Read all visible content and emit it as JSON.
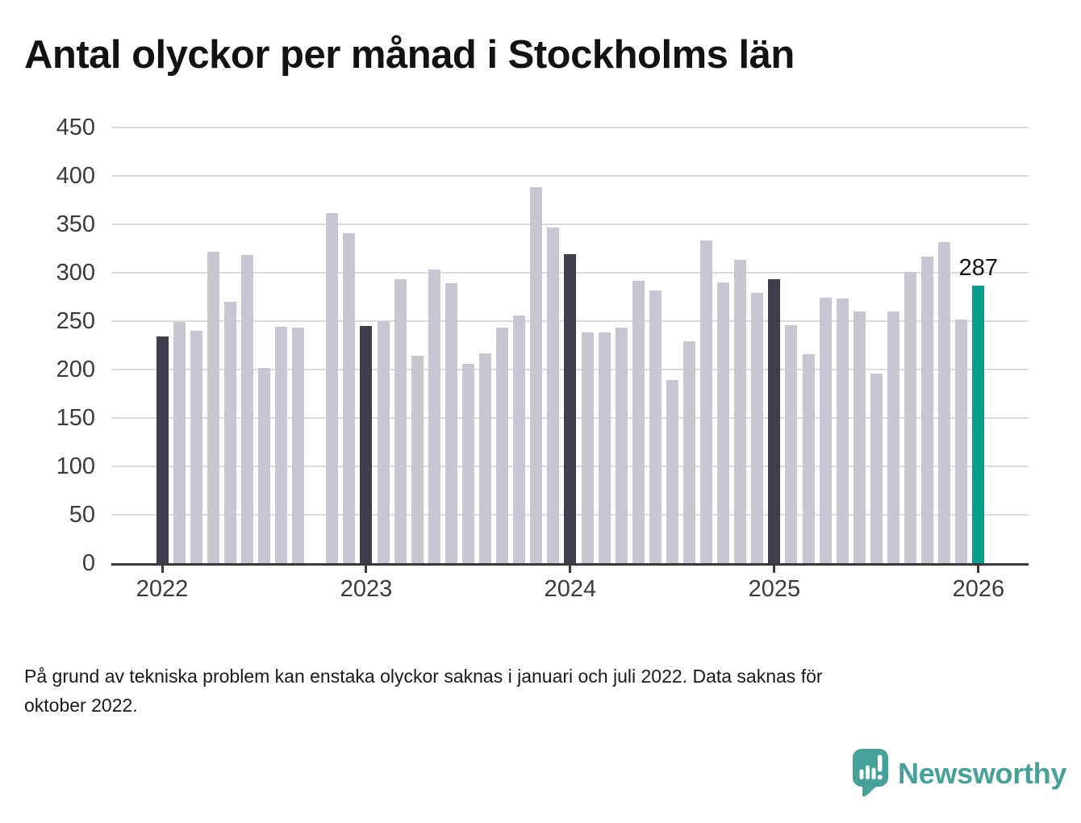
{
  "title": "Antal olyckor per månad i Stockholms län",
  "footnote": {
    "lines": [
      "På grund av tekniska problem kan enstaka olyckor saknas i januari och juli 2022. Data saknas för",
      "oktober 2022."
    ]
  },
  "branding": {
    "name": "Newsworthy",
    "icon": "newsworthy-speech-bubble-bar-chart-icon"
  },
  "colors": {
    "bar_default": "#c7c6d2",
    "bar_january": "#3e3e4d",
    "bar_latest": "#089e8e",
    "gridline": "#dcdcdc",
    "axis": "#3a3a3a",
    "tick_label": "#3b3b3b",
    "annotation_text": "#141414",
    "title_text": "#121212",
    "footnote_text": "#1a1a1a",
    "brand_teal": "#46a299",
    "background": "#ffffff"
  },
  "chart_data": {
    "type": "bar",
    "title": "Antal olyckor per månad i Stockholms län",
    "xlabel": "",
    "ylabel": "",
    "ylim": [
      0,
      450
    ],
    "y_ticks": [
      0,
      50,
      100,
      150,
      200,
      250,
      300,
      350,
      400,
      450
    ],
    "grid": true,
    "legend": false,
    "missing_months": [
      "2022-10"
    ],
    "x": [
      "2022-01",
      "2022-02",
      "2022-03",
      "2022-04",
      "2022-05",
      "2022-06",
      "2022-07",
      "2022-08",
      "2022-09",
      "2022-10",
      "2022-11",
      "2022-12",
      "2023-01",
      "2023-02",
      "2023-03",
      "2023-04",
      "2023-05",
      "2023-06",
      "2023-07",
      "2023-08",
      "2023-09",
      "2023-10",
      "2023-11",
      "2023-12",
      "2024-01",
      "2024-02",
      "2024-03",
      "2024-04",
      "2024-05",
      "2024-06",
      "2024-07",
      "2024-08",
      "2024-09",
      "2024-10",
      "2024-11",
      "2024-12",
      "2025-01",
      "2025-02",
      "2025-03",
      "2025-04",
      "2025-05",
      "2025-06",
      "2025-07",
      "2025-08",
      "2025-09",
      "2025-10",
      "2025-11",
      "2025-12",
      "2026-01"
    ],
    "values": [
      234,
      249,
      240,
      322,
      270,
      318,
      202,
      244,
      243,
      null,
      362,
      341,
      245,
      250,
      293,
      214,
      303,
      289,
      206,
      217,
      243,
      256,
      388,
      347,
      319,
      238,
      238,
      243,
      292,
      282,
      189,
      229,
      333,
      290,
      313,
      279,
      293,
      246,
      216,
      274,
      273,
      260,
      196,
      260,
      301,
      317,
      332,
      252,
      287
    ],
    "x_ticks": [
      {
        "label": "2022",
        "month": "2022-01"
      },
      {
        "label": "2023",
        "month": "2023-01"
      },
      {
        "label": "2024",
        "month": "2024-01"
      },
      {
        "label": "2025",
        "month": "2025-01"
      },
      {
        "label": "2026",
        "month": "2026-01"
      }
    ],
    "annotation": {
      "text": "287",
      "month": "2026-01"
    }
  }
}
